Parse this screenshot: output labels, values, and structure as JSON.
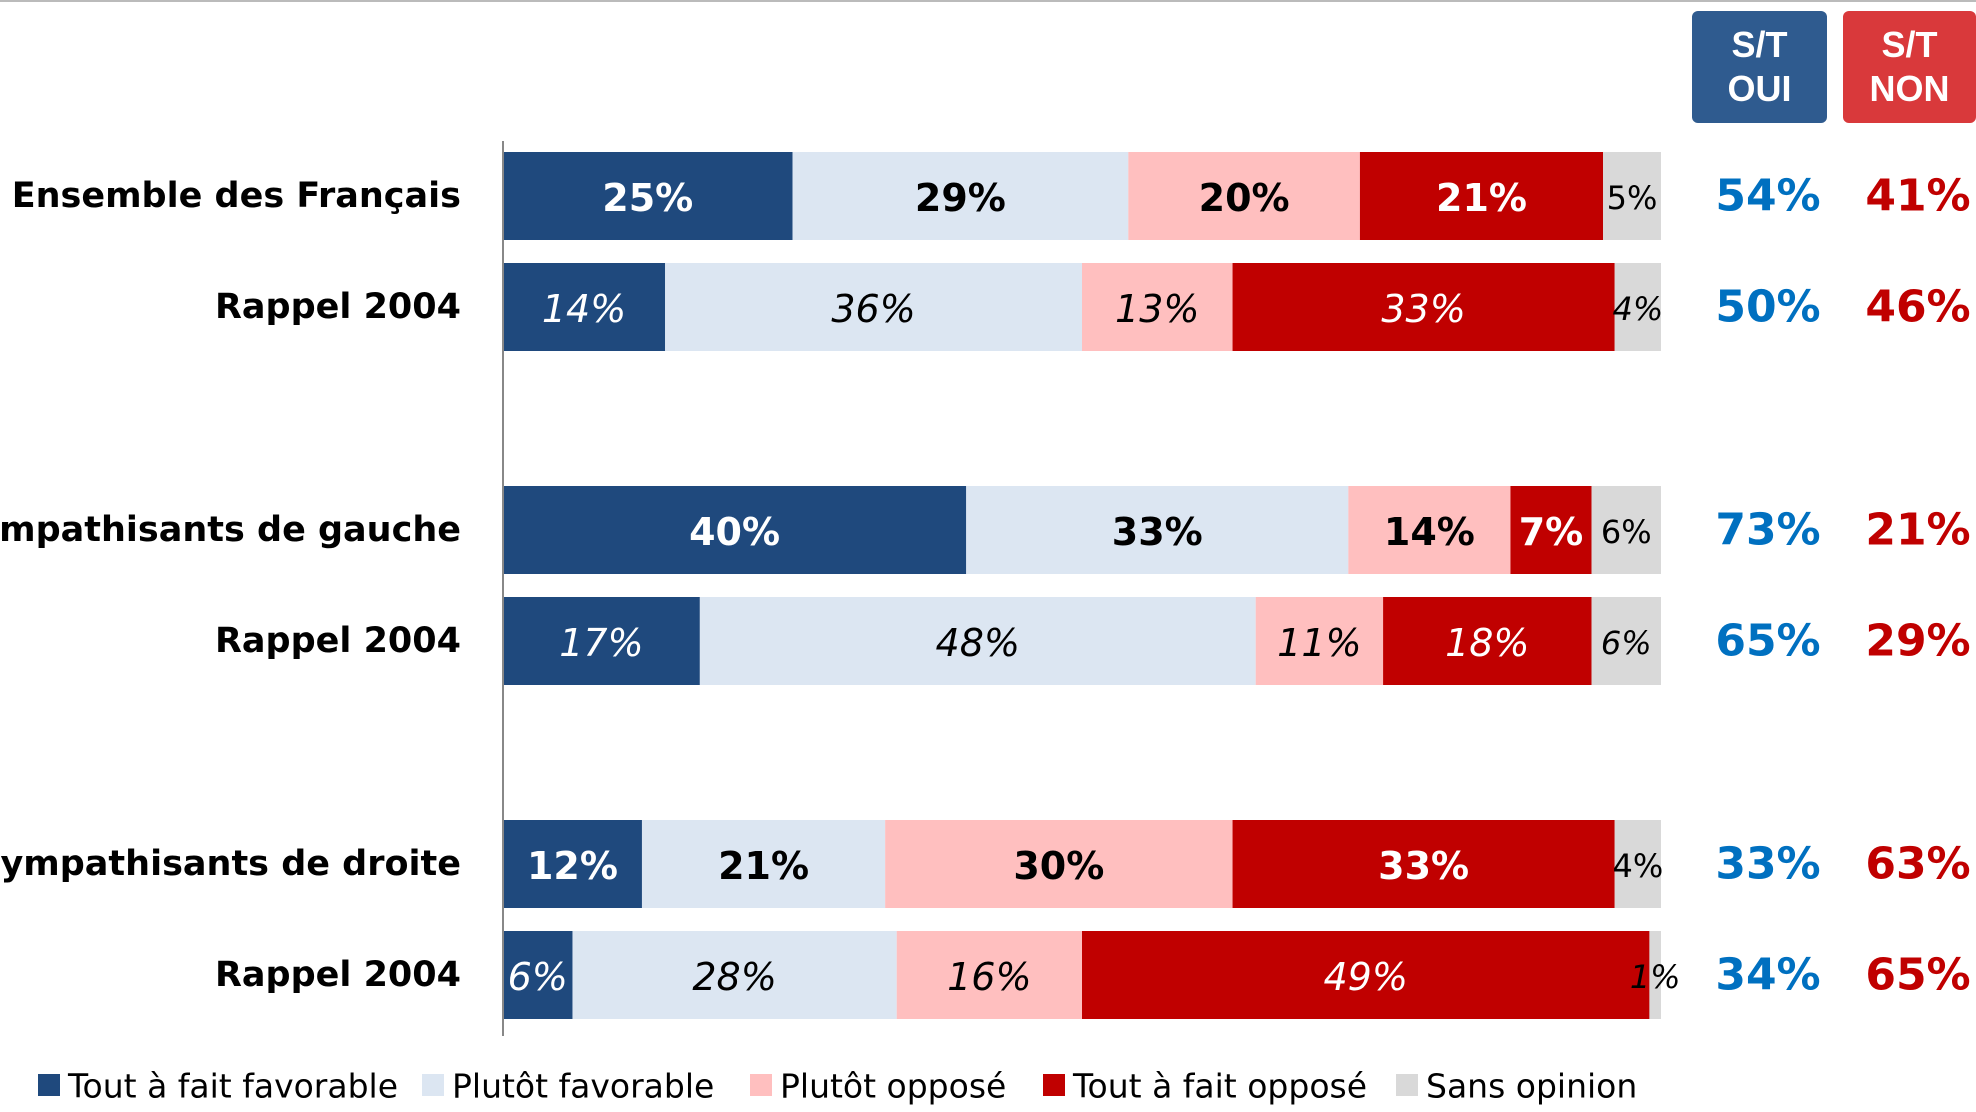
{
  "chart_data": {
    "type": "stacked_barh",
    "categories": [
      "Ensemble des Français",
      "Rappel 2004",
      "Sympathisants de gauche",
      "Rappel 2004",
      "Sympathisants de droite",
      "Rappel 2004"
    ],
    "xlim": [
      0,
      100
    ],
    "series": [
      {
        "name": "Tout à fait favorable",
        "color": "#1f497d",
        "values": [
          25,
          14,
          40,
          17,
          12,
          6
        ],
        "value_labels": [
          "25%",
          "14%",
          "40%",
          "17%",
          "12%",
          "6%"
        ]
      },
      {
        "name": "Plutôt favorable",
        "color": "#dce6f2",
        "values": [
          29,
          36,
          33,
          48,
          21,
          28
        ],
        "value_labels": [
          "29%",
          "36%",
          "33%",
          "48%",
          "21%",
          "28%"
        ]
      },
      {
        "name": "Plutôt opposé",
        "color": "#ffbfbf",
        "values": [
          20,
          13,
          14,
          11,
          30,
          16
        ],
        "value_labels": [
          "20%",
          "13%",
          "14%",
          "11%",
          "30%",
          "16%"
        ]
      },
      {
        "name": "Tout à fait opposé",
        "color": "#c00000",
        "values": [
          21,
          33,
          7,
          18,
          33,
          49
        ],
        "value_labels": [
          "21%",
          "33%",
          "7%",
          "18%",
          "33%",
          "49%"
        ]
      },
      {
        "name": "Sans opinion",
        "color": "#d9d9d9",
        "values": [
          5,
          4,
          6,
          6,
          4,
          1
        ],
        "value_labels": [
          "5%",
          "4%",
          "6%",
          "6%",
          "4%",
          "1%"
        ]
      }
    ],
    "totals": [
      {
        "name": "S/T OUI",
        "color": "#0070c0",
        "box_color": "#2f5b8f",
        "values": [
          54,
          50,
          73,
          65,
          33,
          34
        ],
        "value_labels": [
          "54%",
          "50%",
          "73%",
          "65%",
          "33%",
          "34%"
        ]
      },
      {
        "name": "S/T NON",
        "color": "#c00000",
        "box_color": "#d9393b",
        "values": [
          41,
          46,
          21,
          29,
          63,
          65
        ],
        "value_labels": [
          "41%",
          "46%",
          "21%",
          "29%",
          "63%",
          "65%"
        ]
      }
    ]
  }
}
